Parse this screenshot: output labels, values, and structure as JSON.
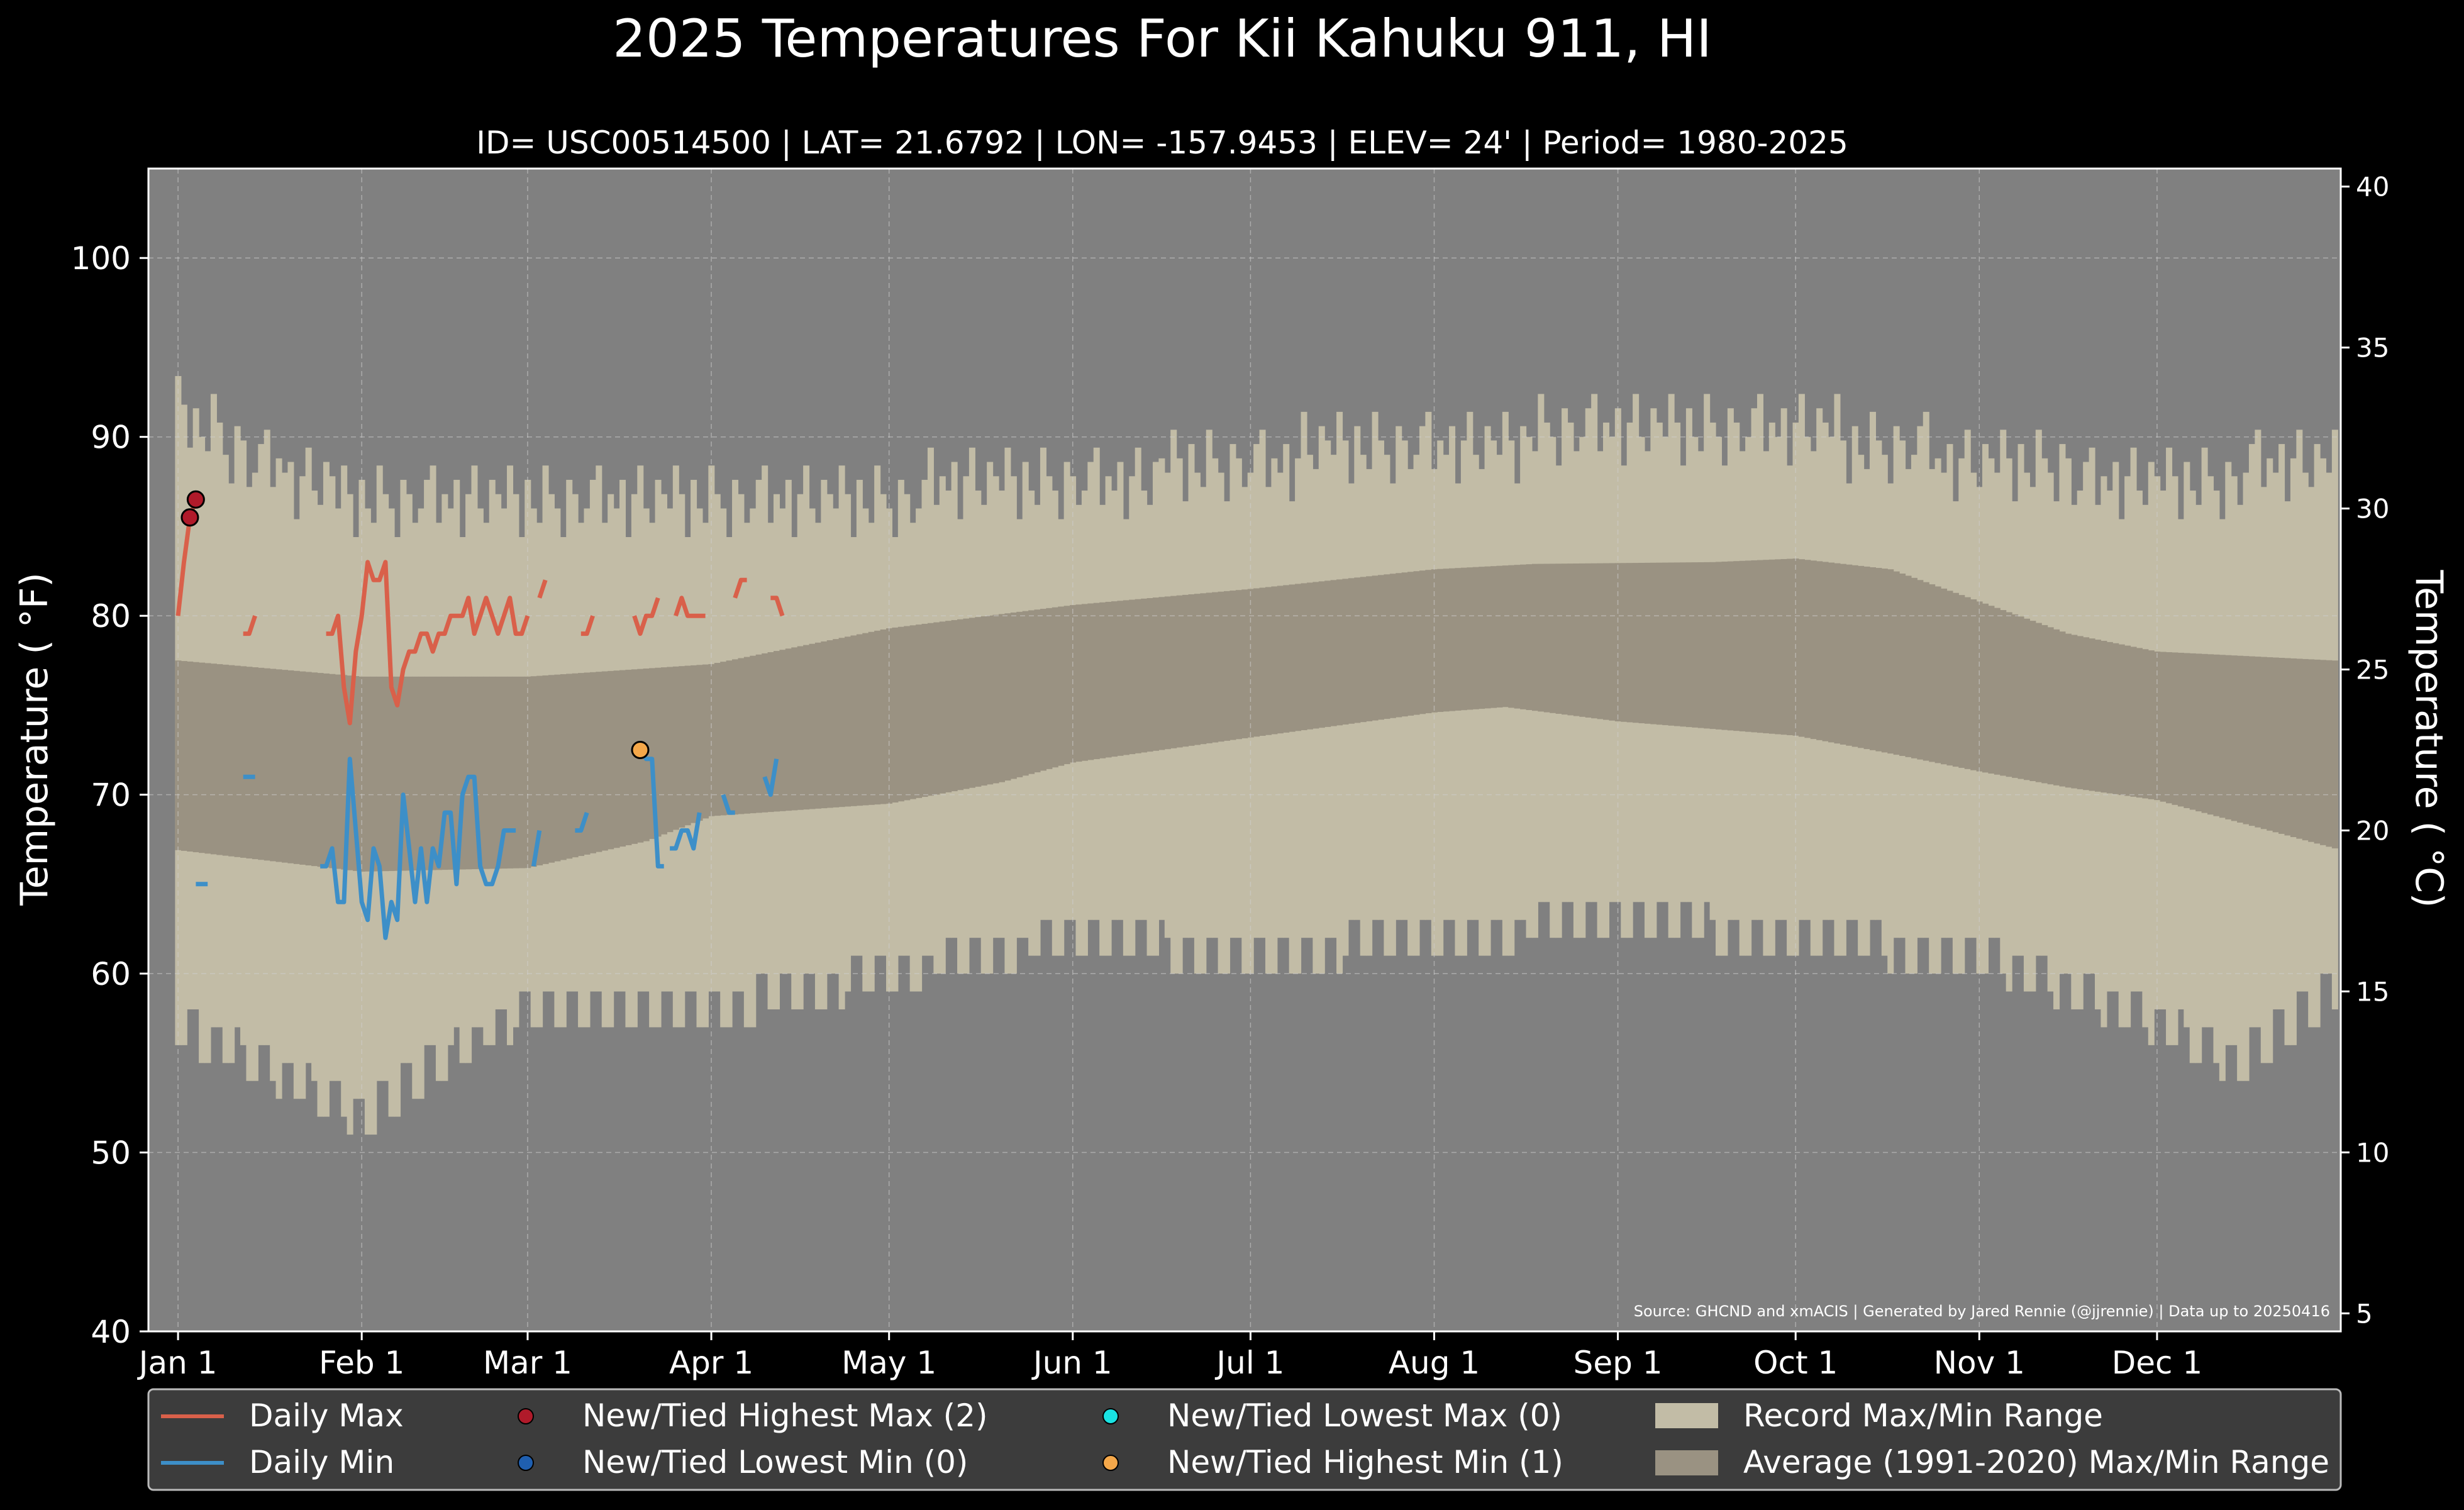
{
  "title": "2025 Temperatures For Kii Kahuku 911, HI",
  "subtitle": "ID= USC00514500 | LAT= 21.6792 | LON= -157.9453 | ELEV= 24' | Period= 1980-2025",
  "source_note": "Source: GHCND and xmACIS | Generated by Jared Rennie (@jjrennie) | Data up to 20250416",
  "colors": {
    "background": "#000000",
    "plot_bg": "#808080",
    "record_band": "#c2bca6",
    "normal_band": "#9a9282",
    "daily_max": "#d9604a",
    "daily_min": "#3d8fc8",
    "new_high_max": "#b01a2a",
    "new_low_min": "#1f5fb0",
    "new_low_max": "#19e3e3",
    "new_high_min": "#f5a84a",
    "legend_bg": "#3c3c3c"
  },
  "chart_data": {
    "type": "line",
    "xlabel": "",
    "ylabel": "Temperature ( °F)",
    "ylabel_right": "Temperature ( °C)",
    "ylim": [
      40,
      105
    ],
    "ylim_right_c": [
      4.44,
      40.56
    ],
    "yticks": [
      40,
      50,
      60,
      70,
      80,
      90,
      100
    ],
    "yticks_right": [
      5,
      10,
      15,
      20,
      25,
      30,
      35,
      40
    ],
    "x_ticks": [
      {
        "day": 1,
        "label": "Jan 1"
      },
      {
        "day": 32,
        "label": "Feb 1"
      },
      {
        "day": 60,
        "label": "Mar 1"
      },
      {
        "day": 91,
        "label": "Apr 1"
      },
      {
        "day": 121,
        "label": "May 1"
      },
      {
        "day": 152,
        "label": "Jun 1"
      },
      {
        "day": 182,
        "label": "Jul 1"
      },
      {
        "day": 213,
        "label": "Aug 1"
      },
      {
        "day": 244,
        "label": "Sep 1"
      },
      {
        "day": 274,
        "label": "Oct 1"
      },
      {
        "day": 305,
        "label": "Nov 1"
      },
      {
        "day": 335,
        "label": "Dec 1"
      }
    ],
    "xlim": [
      -4,
      366
    ],
    "grid": true,
    "legend_position": "bottom",
    "legend": {
      "daily_max": "Daily Max",
      "daily_min": "Daily Min",
      "new_high_max": "New/Tied Highest Max (2)",
      "new_low_min": "New/Tied Lowest Min (0)",
      "new_low_max": "New/Tied Lowest Max (0)",
      "new_high_min": "New/Tied Highest Min (1)",
      "record_band": "Record Max/Min Range",
      "normal_band": "Average (1991-2020) Max/Min Range"
    },
    "normal_max_anchors": [
      [
        1,
        77.5
      ],
      [
        32,
        76.6
      ],
      [
        60,
        76.6
      ],
      [
        91,
        77.3
      ],
      [
        121,
        79.3
      ],
      [
        152,
        80.6
      ],
      [
        182,
        81.5
      ],
      [
        213,
        82.6
      ],
      [
        230,
        82.9
      ],
      [
        260,
        83.0
      ],
      [
        274,
        83.2
      ],
      [
        290,
        82.6
      ],
      [
        305,
        80.8
      ],
      [
        320,
        79.0
      ],
      [
        335,
        78.0
      ],
      [
        365,
        77.5
      ]
    ],
    "normal_min_anchors": [
      [
        1,
        66.9
      ],
      [
        32,
        65.7
      ],
      [
        60,
        65.9
      ],
      [
        80,
        67.4
      ],
      [
        91,
        68.8
      ],
      [
        121,
        69.5
      ],
      [
        140,
        70.7
      ],
      [
        152,
        71.8
      ],
      [
        182,
        73.2
      ],
      [
        213,
        74.6
      ],
      [
        225,
        74.9
      ],
      [
        244,
        74.1
      ],
      [
        274,
        73.3
      ],
      [
        290,
        72.3
      ],
      [
        305,
        71.3
      ],
      [
        320,
        70.4
      ],
      [
        335,
        69.7
      ],
      [
        365,
        67.0
      ]
    ],
    "record_max_anchors": [
      [
        1,
        91
      ],
      [
        15,
        88
      ],
      [
        32,
        86
      ],
      [
        60,
        86
      ],
      [
        91,
        86
      ],
      [
        121,
        86
      ],
      [
        135,
        87
      ],
      [
        152,
        87
      ],
      [
        182,
        88
      ],
      [
        200,
        89
      ],
      [
        213,
        89
      ],
      [
        244,
        90
      ],
      [
        274,
        90
      ],
      [
        305,
        88
      ],
      [
        335,
        87
      ],
      [
        365,
        88
      ]
    ],
    "record_min_anchors": [
      [
        1,
        58
      ],
      [
        15,
        56
      ],
      [
        32,
        53
      ],
      [
        45,
        56
      ],
      [
        60,
        59
      ],
      [
        91,
        59
      ],
      [
        121,
        61
      ],
      [
        152,
        63
      ],
      [
        182,
        62
      ],
      [
        213,
        63
      ],
      [
        244,
        64
      ],
      [
        274,
        63
      ],
      [
        305,
        62
      ],
      [
        330,
        59
      ],
      [
        348,
        56
      ],
      [
        365,
        60
      ]
    ],
    "record_max_jitter": [
      0,
      3,
      1,
      -2,
      2,
      0,
      -1,
      3,
      1,
      0,
      -2,
      2,
      1,
      -1,
      0,
      2,
      3,
      -1,
      1,
      0,
      2,
      -2,
      1,
      3,
      0,
      -1,
      2,
      1
    ],
    "record_min_jitter": [
      0,
      -3,
      2,
      -1,
      -4,
      1,
      3,
      -2,
      0,
      2,
      -3,
      1,
      -1,
      4,
      -2,
      0,
      3,
      -1,
      2,
      -3,
      1,
      0,
      -2,
      3,
      -1,
      2,
      0,
      -4
    ],
    "daily_max_segments": [
      [
        [
          1,
          80
        ],
        [
          2,
          83
        ],
        [
          3,
          85.5
        ],
        [
          4,
          86.5
        ]
      ],
      [
        [
          12,
          79
        ],
        [
          13,
          79
        ],
        [
          14,
          80
        ]
      ],
      [
        [
          26,
          79
        ],
        [
          27,
          79
        ],
        [
          28,
          80
        ],
        [
          29,
          76
        ],
        [
          30,
          74
        ],
        [
          31,
          78
        ],
        [
          32,
          80
        ],
        [
          33,
          83
        ],
        [
          34,
          82
        ],
        [
          35,
          82
        ],
        [
          36,
          83
        ],
        [
          37,
          76
        ],
        [
          38,
          75
        ],
        [
          39,
          77
        ],
        [
          40,
          78
        ],
        [
          41,
          78
        ],
        [
          42,
          79
        ],
        [
          43,
          79
        ],
        [
          44,
          78
        ],
        [
          45,
          79
        ],
        [
          46,
          79
        ],
        [
          47,
          80
        ],
        [
          48,
          80
        ],
        [
          49,
          80
        ],
        [
          50,
          81
        ],
        [
          51,
          79
        ],
        [
          52,
          80
        ],
        [
          53,
          81
        ],
        [
          54,
          80
        ],
        [
          55,
          79
        ],
        [
          56,
          80
        ],
        [
          57,
          81
        ],
        [
          58,
          79
        ],
        [
          59,
          79
        ],
        [
          60,
          80
        ]
      ],
      [
        [
          62,
          81
        ],
        [
          63,
          82
        ]
      ],
      [
        [
          69,
          79
        ],
        [
          70,
          79
        ],
        [
          71,
          80
        ]
      ],
      [
        [
          78,
          80
        ],
        [
          79,
          79
        ],
        [
          80,
          80
        ],
        [
          81,
          80
        ],
        [
          82,
          81
        ]
      ],
      [
        [
          85,
          80
        ],
        [
          86,
          81
        ],
        [
          87,
          80
        ],
        [
          88,
          80
        ],
        [
          89,
          80
        ],
        [
          90,
          80
        ]
      ],
      [
        [
          95,
          81
        ],
        [
          96,
          82
        ],
        [
          97,
          82
        ]
      ],
      [
        [
          101,
          81
        ],
        [
          102,
          81
        ],
        [
          103,
          80
        ]
      ]
    ],
    "daily_min_segments": [
      [
        [
          4,
          65
        ],
        [
          5,
          65
        ],
        [
          6,
          65
        ]
      ],
      [
        [
          12,
          71
        ],
        [
          13,
          71
        ],
        [
          14,
          71
        ]
      ],
      [
        [
          25,
          66
        ],
        [
          26,
          66
        ],
        [
          27,
          67
        ],
        [
          28,
          64
        ],
        [
          29,
          64
        ],
        [
          30,
          72
        ],
        [
          31,
          68
        ],
        [
          32,
          64
        ],
        [
          33,
          63
        ],
        [
          34,
          67
        ],
        [
          35,
          66
        ],
        [
          36,
          62
        ],
        [
          37,
          64
        ],
        [
          38,
          63
        ],
        [
          39,
          70
        ],
        [
          40,
          67
        ],
        [
          41,
          64
        ],
        [
          42,
          67
        ],
        [
          43,
          64
        ],
        [
          44,
          67
        ],
        [
          45,
          66
        ],
        [
          46,
          69
        ],
        [
          47,
          69
        ],
        [
          48,
          65
        ],
        [
          49,
          70
        ],
        [
          50,
          71
        ],
        [
          51,
          71
        ],
        [
          52,
          66
        ],
        [
          53,
          65
        ],
        [
          54,
          65
        ],
        [
          55,
          66
        ],
        [
          56,
          68
        ],
        [
          57,
          68
        ],
        [
          58,
          68
        ]
      ],
      [
        [
          61,
          66
        ],
        [
          62,
          68
        ]
      ],
      [
        [
          68,
          68
        ],
        [
          69,
          68
        ],
        [
          70,
          69
        ]
      ],
      [
        [
          79,
          72.5
        ],
        [
          80,
          72
        ],
        [
          81,
          72
        ],
        [
          82,
          66
        ],
        [
          83,
          66
        ]
      ],
      [
        [
          84,
          67
        ],
        [
          85,
          67
        ],
        [
          86,
          68
        ],
        [
          87,
          68
        ],
        [
          88,
          67
        ],
        [
          89,
          69
        ]
      ],
      [
        [
          93,
          70
        ],
        [
          94,
          69
        ],
        [
          95,
          69
        ]
      ],
      [
        [
          100,
          71
        ],
        [
          101,
          70
        ],
        [
          102,
          72
        ]
      ]
    ],
    "markers": {
      "new_high_max": [
        [
          3,
          85.5
        ],
        [
          4,
          86.5
        ]
      ],
      "new_high_min": [
        [
          79,
          72.5
        ]
      ]
    }
  }
}
